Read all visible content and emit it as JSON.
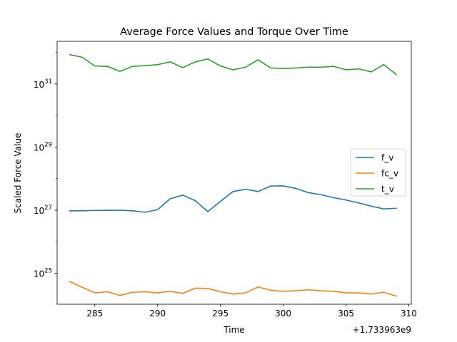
{
  "chart_data": {
    "type": "line",
    "title": "Average Force Values and Torque Over Time",
    "xlabel": "Time",
    "ylabel": "Scaled Force Value",
    "x_offset_label": "+1.733963e9",
    "xlim": [
      282,
      310.2
    ],
    "ylog": true,
    "ylim_exp": [
      24.02,
      32.35
    ],
    "x_ticks": [
      285,
      290,
      295,
      300,
      305,
      310
    ],
    "y_ticks": [
      {
        "exp": 25,
        "base": "10",
        "sup": "25"
      },
      {
        "exp": 27,
        "base": "10",
        "sup": "27"
      },
      {
        "exp": 29,
        "base": "10",
        "sup": "29"
      },
      {
        "exp": 31,
        "base": "10",
        "sup": "31"
      }
    ],
    "grid": false,
    "legend_position": "center-right",
    "x": [
      283,
      284,
      285,
      286,
      287,
      288,
      289,
      290,
      291,
      292,
      293,
      294,
      295,
      296,
      297,
      298,
      299,
      300,
      301,
      302,
      303,
      304,
      305,
      306,
      307,
      308,
      309
    ],
    "series": [
      {
        "name": "f_v",
        "color": "#1f77b4",
        "values": [
          9.5e+26,
          9.6e+26,
          9.8e+26,
          9.9e+26,
          1e+27,
          9.6e+26,
          8.6e+26,
          1.04e+27,
          2.3e+27,
          3e+27,
          2e+27,
          9e+26,
          1.9e+27,
          3.9e+27,
          4.6e+27,
          3.9e+27,
          5.8e+27,
          5.9e+27,
          4.9e+27,
          3.6e+27,
          3.1e+27,
          2.5e+27,
          2.1e+27,
          1.7e+27,
          1.35e+27,
          1.1e+27,
          1.15e+27
        ]
      },
      {
        "name": "fc_v",
        "color": "#ff7f0e",
        "values": [
          5.5e+24,
          3.6e+24,
          2.4e+24,
          2.6e+24,
          2e+24,
          2.5e+24,
          2.6e+24,
          2.4e+24,
          2.7e+24,
          2.3e+24,
          3.4e+24,
          3.3e+24,
          2.6e+24,
          2.2e+24,
          2.4e+24,
          3.7e+24,
          2.9e+24,
          2.7e+24,
          2.8e+24,
          3e+24,
          2.8e+24,
          2.7e+24,
          2.4e+24,
          2.4e+24,
          2.2e+24,
          2.5e+24,
          1.9e+24
        ]
      },
      {
        "name": "t_v",
        "color": "#2ca02c",
        "values": [
          8.5e+31,
          7e+31,
          3.7e+31,
          3.6e+31,
          2.5e+31,
          3.6e+31,
          3.8e+31,
          4.1e+31,
          5e+31,
          3.3e+31,
          5e+31,
          6.2e+31,
          3.7e+31,
          2.8e+31,
          3.4e+31,
          5.8e+31,
          3.2e+31,
          3.1e+31,
          3.2e+31,
          3.4e+31,
          3.4e+31,
          3.6e+31,
          2.8e+31,
          3e+31,
          2.4e+31,
          4.1e+31,
          2e+31
        ]
      }
    ]
  }
}
